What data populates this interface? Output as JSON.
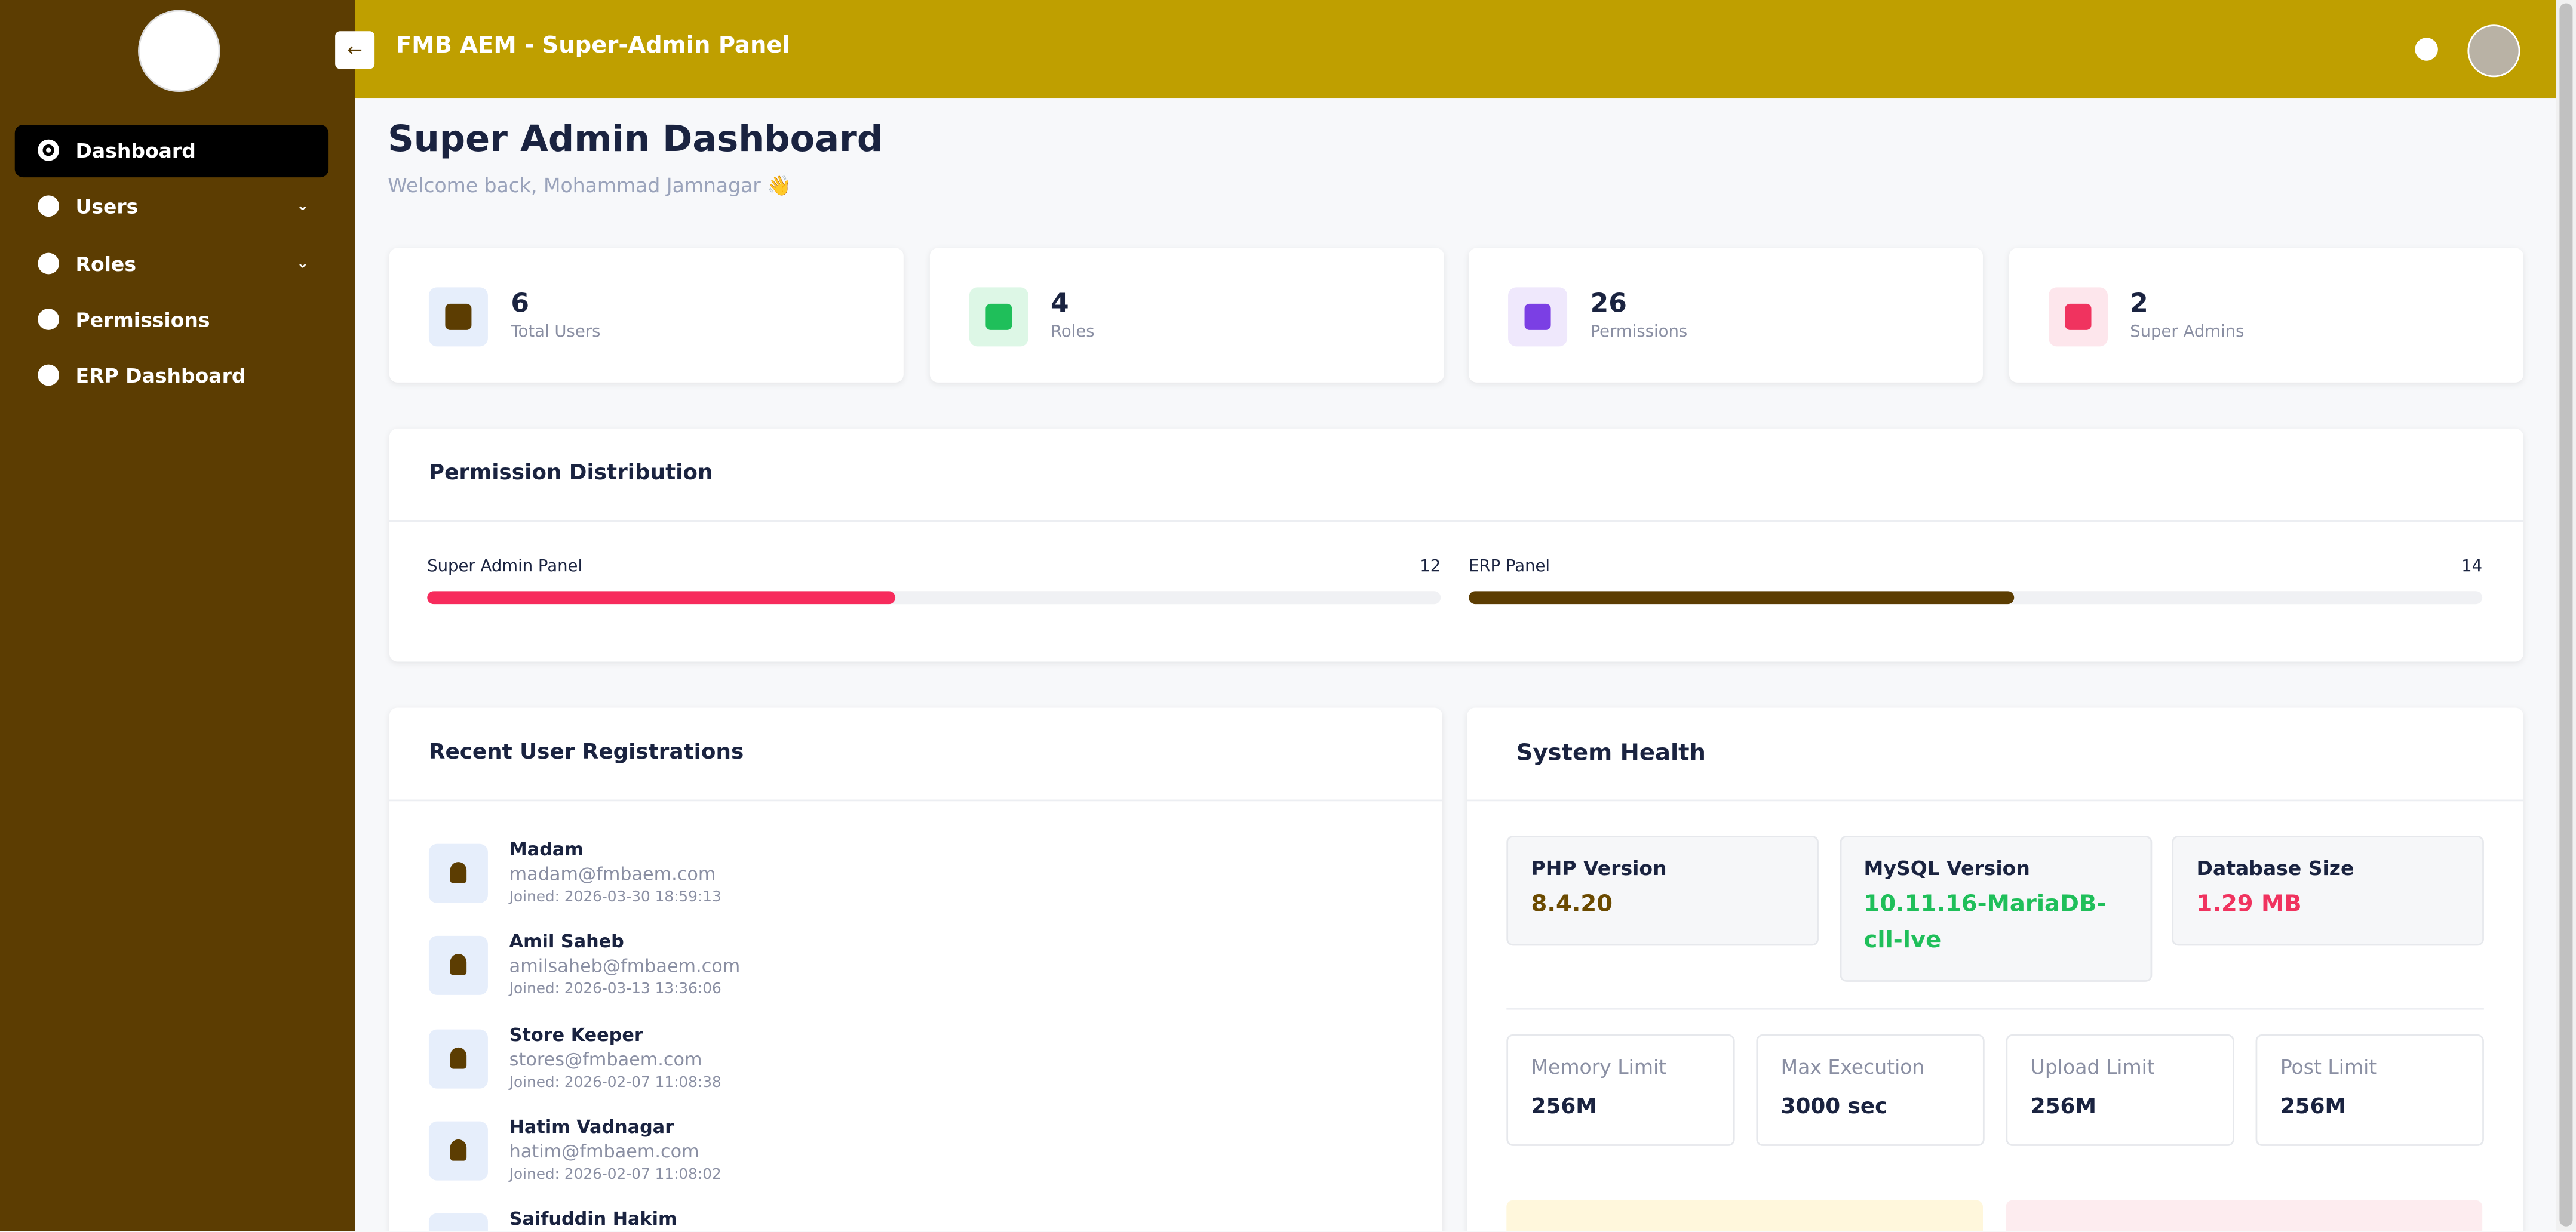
{
  "header": {
    "title": "FMB AEM - Super-Admin Panel"
  },
  "sidebar": {
    "nav": [
      "Dashboard",
      "Users",
      "Roles",
      "Permissions",
      "ERP Dashboard"
    ]
  },
  "page": {
    "title": "Super Admin Dashboard",
    "subtitle": "Welcome back, Mohammad Jamnagar 👋"
  },
  "stats": [
    {
      "value": 6,
      "label": "Total Users"
    },
    {
      "value": 4,
      "label": "Roles"
    },
    {
      "value": 26,
      "label": "Permissions"
    },
    {
      "value": 2,
      "label": "Super Admins"
    }
  ],
  "permission_distribution": {
    "title": "Permission Distribution",
    "items": [
      {
        "name": "Super Admin Panel",
        "count": 12
      },
      {
        "name": "ERP Panel",
        "count": 14
      }
    ]
  },
  "recent_users": {
    "title": "Recent User Registrations",
    "users": [
      {
        "name": "Madam",
        "email": "madam@fmbaem.com",
        "joined": "Joined: 2026-03-30 18:59:13"
      },
      {
        "name": "Amil Saheb",
        "email": "amilsaheb@fmbaem.com",
        "joined": "Joined: 2026-03-13 13:36:06"
      },
      {
        "name": "Store Keeper",
        "email": "stores@fmbaem.com",
        "joined": "Joined: 2026-02-07 11:08:38"
      },
      {
        "name": "Hatim Vadnagar",
        "email": "hatim@fmbaem.com",
        "joined": "Joined: 2026-02-07 11:08:02"
      },
      {
        "name": "Saifuddin Hakim",
        "email": "",
        "joined": ""
      }
    ]
  },
  "system_health": {
    "title": "System Health",
    "primary": [
      {
        "label": "PHP Version",
        "value": "8.4.20"
      },
      {
        "label": "MySQL Version",
        "value": "10.11.16-MariaDB-cll-lve"
      },
      {
        "label": "Database Size",
        "value": "1.29 MB"
      }
    ],
    "limits": [
      {
        "label": "Memory Limit",
        "value": "256M"
      },
      {
        "label": "Max Execution",
        "value": "3000 sec"
      },
      {
        "label": "Upload Limit",
        "value": "256M"
      },
      {
        "label": "Post Limit",
        "value": "256M"
      }
    ]
  }
}
